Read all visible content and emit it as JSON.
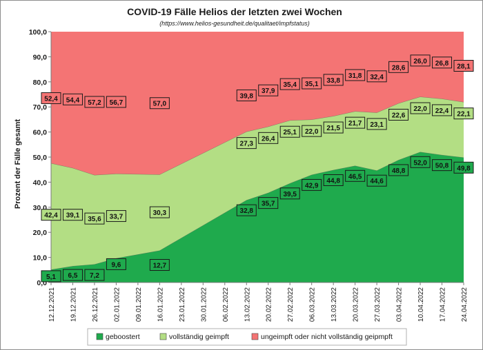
{
  "chart_data": {
    "type": "area",
    "stacked": true,
    "title": "COVID-19 Fälle Helios der letzten zwei Wochen",
    "subtitle": "(https://www.helios-gesundheit.de/qualitaet/impfstatus)",
    "ylabel": "Prozent der Fälle gesamt",
    "xlabel": "",
    "ylim": [
      0,
      100
    ],
    "yticks": [
      "0,0",
      "10,0",
      "20,0",
      "30,0",
      "40,0",
      "50,0",
      "60,0",
      "70,0",
      "80,0",
      "90,0",
      "100,0"
    ],
    "categories": [
      "12.12.2021",
      "19.12.2021",
      "26.12.2021",
      "02.01.2022",
      "09.01.2022",
      "16.01.2022",
      "23.01.2022",
      "30.01.2022",
      "06.02.2022",
      "13.02.2022",
      "20.02.2022",
      "27.02.2022",
      "06.03.2022",
      "13.03.2022",
      "20.03.2022",
      "27.03.2022",
      "03.04.2022",
      "10.04.2022",
      "17.04.2022",
      "24.04.2022"
    ],
    "series": [
      {
        "name": "geboostert",
        "color": "#1faa4d",
        "label_fill": "#1faa4d",
        "values": [
          5.1,
          6.5,
          7.2,
          9.6,
          null,
          12.7,
          null,
          null,
          null,
          32.8,
          35.7,
          39.5,
          42.9,
          44.8,
          46.5,
          44.6,
          48.8,
          52.0,
          50.8,
          49.8
        ],
        "labels": [
          "5,1",
          "6,5",
          "7,2",
          "9,6",
          "",
          "12,7",
          "",
          "",
          "",
          "32,8",
          "35,7",
          "39,5",
          "42,9",
          "44,8",
          "46,5",
          "44,6",
          "48,8",
          "52,0",
          "50,8",
          "49,8"
        ]
      },
      {
        "name": "vollständig geimpft",
        "color": "#b3de84",
        "label_fill": "#b3de84",
        "values": [
          42.4,
          39.1,
          35.6,
          33.7,
          null,
          30.3,
          null,
          null,
          null,
          27.3,
          26.4,
          25.1,
          22.0,
          21.5,
          21.7,
          23.1,
          22.6,
          22.0,
          22.4,
          22.1
        ],
        "labels": [
          "42,4",
          "39,1",
          "35,6",
          "33,7",
          "",
          "30,3",
          "",
          "",
          "",
          "27,3",
          "26,4",
          "25,1",
          "22,0",
          "21,5",
          "21,7",
          "23,1",
          "22,6",
          "22,0",
          "22,4",
          "22,1"
        ]
      },
      {
        "name": "ungeimpft oder nicht vollständig geipmpft",
        "color": "#f47474",
        "label_fill": "#f47474",
        "values": [
          52.4,
          54.4,
          57.2,
          56.7,
          null,
          57.0,
          null,
          null,
          null,
          39.8,
          37.9,
          35.4,
          35.1,
          33.8,
          31.8,
          32.4,
          28.6,
          26.0,
          26.8,
          28.1
        ],
        "labels": [
          "52,4",
          "54,4",
          "57,2",
          "56,7",
          "",
          "57,0",
          "",
          "",
          "",
          "39,8",
          "37,9",
          "35,4",
          "35,1",
          "33,8",
          "31,8",
          "32,4",
          "28,6",
          "26,0",
          "26,8",
          "28,1"
        ]
      }
    ],
    "legend_position": "bottom",
    "grid": false
  }
}
